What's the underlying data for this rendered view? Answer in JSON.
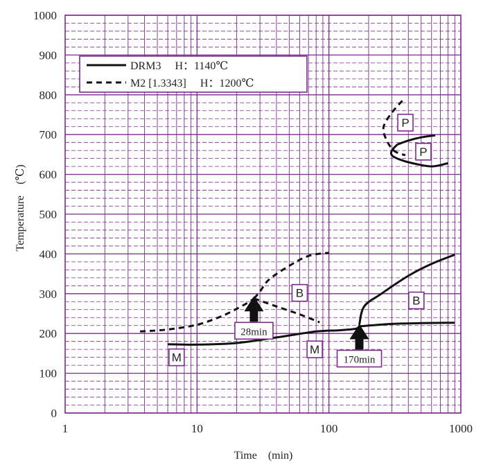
{
  "chart_data": {
    "type": "line",
    "title": "",
    "xlabel": "Time　(min)",
    "ylabel": "Temperature　(℃)",
    "x_scale": "log",
    "xlim": [
      1,
      1000
    ],
    "ylim": [
      0,
      1000
    ],
    "x_ticks": [
      "1",
      "10",
      "100",
      "1000"
    ],
    "y_ticks": [
      "0",
      "100",
      "200",
      "300",
      "400",
      "500",
      "600",
      "700",
      "800",
      "900",
      "1000"
    ],
    "grid": true,
    "grid_color": "#7b2a8c",
    "legend_position": "top-left",
    "legend": [
      {
        "series": "DRM3",
        "label": "DRM3　 H：1140℃",
        "style": "solid"
      },
      {
        "series": "M2",
        "label": "M2 [1.3343]　 H：1200℃",
        "style": "dashed"
      }
    ],
    "series": [
      {
        "name": "DRM3",
        "style": "solid",
        "curves": {
          "ms_line": [
            [
              6,
              173
            ],
            [
              10,
              172
            ],
            [
              20,
              176
            ],
            [
              40,
              190
            ],
            [
              80,
              205
            ],
            [
              120,
              208
            ],
            [
              160,
              212
            ],
            [
              170,
              218
            ]
          ],
          "bainite_finish": [
            [
              170,
              218
            ],
            [
              300,
              224
            ],
            [
              500,
              226
            ],
            [
              900,
              227
            ]
          ],
          "bainite_start": [
            [
              170,
              222
            ],
            [
              185,
              268
            ],
            [
              250,
              300
            ],
            [
              400,
              345
            ],
            [
              600,
              375
            ],
            [
              900,
              398
            ]
          ],
          "pearlite_finish": [
            [
              330,
              675
            ],
            [
              300,
              660
            ],
            [
              300,
              648
            ],
            [
              340,
              638
            ],
            [
              430,
              628
            ],
            [
              600,
              620
            ],
            [
              800,
              628
            ]
          ],
          "pearlite_start": [
            [
              330,
              675
            ],
            [
              400,
              685
            ],
            [
              500,
              693
            ],
            [
              640,
              698
            ]
          ]
        }
      },
      {
        "name": "M2",
        "style": "dashed",
        "curves": {
          "ms_line": [
            [
              3.7,
              205
            ],
            [
              6,
              210
            ],
            [
              10,
              222
            ],
            [
              15,
              242
            ],
            [
              20,
              262
            ],
            [
              25,
              280
            ],
            [
              27,
              288
            ]
          ],
          "bainite_finish": [
            [
              27,
              288
            ],
            [
              40,
              268
            ],
            [
              60,
              248
            ],
            [
              85,
              228
            ]
          ],
          "bainite_start": [
            [
              27,
              288
            ],
            [
              30,
              305
            ],
            [
              35,
              335
            ],
            [
              50,
              370
            ],
            [
              70,
              395
            ],
            [
              100,
              403
            ]
          ],
          "pearlite": [
            [
              360,
              785
            ],
            [
              300,
              755
            ],
            [
              260,
              720
            ],
            [
              270,
              690
            ],
            [
              310,
              660
            ],
            [
              380,
              648
            ]
          ]
        }
      }
    ],
    "annotations": [
      {
        "text": "28min",
        "x": 27,
        "y": 280,
        "kind": "arrow-up"
      },
      {
        "text": "170min",
        "x": 170,
        "y": 210,
        "kind": "arrow-up"
      }
    ],
    "region_labels": [
      {
        "text": "P",
        "x": 380,
        "y": 730
      },
      {
        "text": "P",
        "x": 520,
        "y": 657
      },
      {
        "text": "B",
        "x": 60,
        "y": 302
      },
      {
        "text": "B",
        "x": 460,
        "y": 283
      },
      {
        "text": "M",
        "x": 7,
        "y": 140
      },
      {
        "text": "M",
        "x": 78,
        "y": 160
      }
    ]
  }
}
